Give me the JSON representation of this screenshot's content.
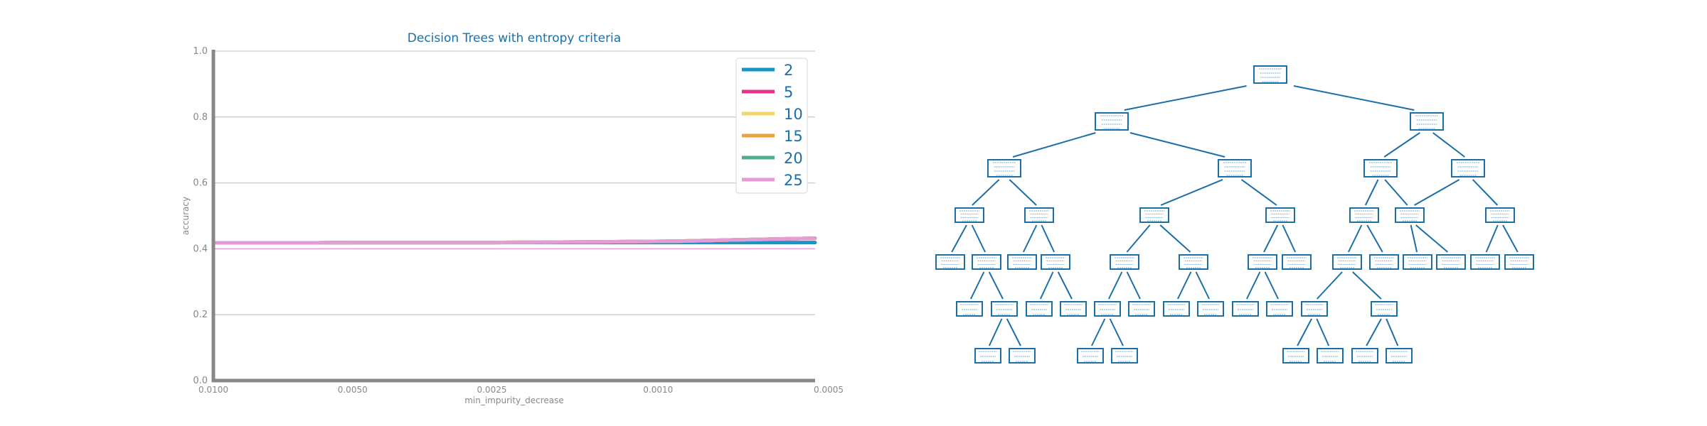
{
  "chart_data": {
    "type": "line",
    "title": "Decision Trees with entropy criteria",
    "xlabel": "min_impurity_decrease",
    "ylabel": "accuracy",
    "x_reversed": true,
    "xlim": [
      0.01,
      0.0005
    ],
    "ylim": [
      0.0,
      1.0
    ],
    "xticks": [
      0.01,
      0.005,
      0.0025,
      0.001,
      0.0005
    ],
    "xtick_labels": [
      "0.0100",
      "0.0050",
      "0.0025",
      "0.0010",
      "0.0005"
    ],
    "yticks": [
      0.0,
      0.2,
      0.4,
      0.6,
      0.8,
      1.0
    ],
    "ytick_labels": [
      "0.0",
      "0.2",
      "0.4",
      "0.6",
      "0.8",
      "1.0"
    ],
    "grid": true,
    "legend_position": "top-right",
    "x": [
      0.01,
      0.009,
      0.008,
      0.007,
      0.006,
      0.005,
      0.004,
      0.003,
      0.0025,
      0.002,
      0.0015,
      0.001,
      0.00075,
      0.0005
    ],
    "series": [
      {
        "name": "2",
        "color": "#1696C8",
        "values": [
          0.418,
          0.418,
          0.418,
          0.418,
          0.418,
          0.419,
          0.419,
          0.419,
          0.419,
          0.419,
          0.419,
          0.419,
          0.419,
          0.419
        ]
      },
      {
        "name": "5",
        "color": "#E6308A",
        "values": [
          0.418,
          0.418,
          0.418,
          0.418,
          0.418,
          0.419,
          0.419,
          0.419,
          0.419,
          0.42,
          0.421,
          0.423,
          0.427,
          0.432
        ]
      },
      {
        "name": "10",
        "color": "#F2D66B",
        "values": [
          0.418,
          0.418,
          0.418,
          0.418,
          0.418,
          0.419,
          0.419,
          0.419,
          0.419,
          0.42,
          0.421,
          0.423,
          0.427,
          0.432
        ]
      },
      {
        "name": "15",
        "color": "#E8A33C",
        "values": [
          0.418,
          0.418,
          0.418,
          0.418,
          0.418,
          0.419,
          0.419,
          0.419,
          0.419,
          0.42,
          0.421,
          0.423,
          0.427,
          0.432
        ]
      },
      {
        "name": "20",
        "color": "#4CAF8C",
        "values": [
          0.418,
          0.418,
          0.418,
          0.418,
          0.418,
          0.419,
          0.419,
          0.419,
          0.419,
          0.42,
          0.421,
          0.423,
          0.427,
          0.432
        ]
      },
      {
        "name": "25",
        "color": "#E59CD4",
        "values": [
          0.418,
          0.418,
          0.418,
          0.418,
          0.418,
          0.419,
          0.419,
          0.419,
          0.419,
          0.42,
          0.421,
          0.423,
          0.427,
          0.432
        ]
      }
    ],
    "reference_line": {
      "y": 0.4,
      "color": "#E59CD4"
    },
    "colors": {
      "title": "#1A6FA8",
      "axis": "#888888",
      "grid": "#CCCCCC",
      "tick_text": "#888888",
      "legend_text": "#1A6FA8"
    }
  },
  "tree": {
    "type": "decision-tree-diagram",
    "color": "#1A6FA8",
    "depth": 7,
    "node_count": 53
  }
}
